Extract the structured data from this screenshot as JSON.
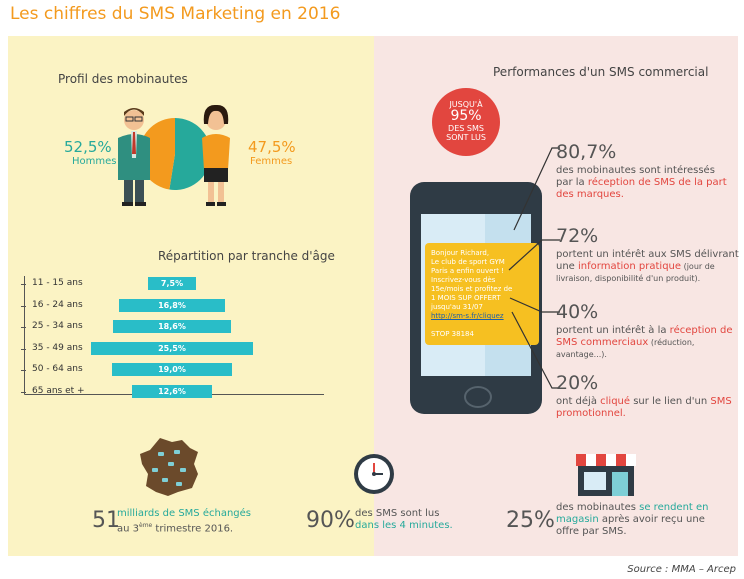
{
  "title": "Les chiffres du SMS Marketing en 2016",
  "profil": {
    "heading": "Profil des mobinautes",
    "hommes_pct": "52,5%",
    "hommes_label": "Hommes",
    "femmes_pct": "47,5%",
    "femmes_label": "Femmes"
  },
  "age": {
    "heading": "Répartition par tranche d'âge"
  },
  "chart_data": [
    {
      "type": "pie",
      "categories": [
        "Hommes",
        "Femmes"
      ],
      "values": [
        52.5,
        47.5
      ],
      "colors": [
        "#26a99b",
        "#f39a1e"
      ]
    },
    {
      "type": "bar",
      "orientation": "horizontal",
      "title": "Répartition par tranche d'âge",
      "categories": [
        "11 - 15 ans",
        "16 - 24 ans",
        "25 - 34 ans",
        "35 - 49 ans",
        "50 - 64 ans",
        "65 ans et +"
      ],
      "values": [
        7.5,
        16.8,
        18.6,
        25.5,
        19.0,
        12.6
      ],
      "labels": [
        "7,5%",
        "16,8%",
        "18,6%",
        "25,5%",
        "19,0%",
        "12,6%"
      ],
      "color": "#29bdc8"
    }
  ],
  "perf": {
    "heading": "Performances d'un SMS commercial",
    "circle": [
      "JUSQU'À",
      "95%",
      "DES SMS",
      "SONT LUS"
    ],
    "sms_lines": [
      "Bonjour Richard,",
      "Le club de sport GYM",
      "Paris a enfin ouvert !",
      "Inscrivez-vous dès",
      "15e/mois et profitez de",
      "1 MOIS SUP OFFERT",
      "jusqu'au 31/07",
      "http://sm-s.fr/cliquez",
      "",
      "STOP 38184"
    ],
    "stat1_num": "80,7%",
    "stat1_a": "des mobinautes sont intéressés",
    "stat1_b": "par la ",
    "stat1_c": "réception de SMS de la part",
    "stat1_d": "des marques.",
    "stat2_num": "72%",
    "stat2_a": "portent un intérêt aux SMS délivrant",
    "stat2_b": "une ",
    "stat2_c": "information pratique",
    "stat2_d": " (jour de",
    "stat2_e": "livraison, disponibilité d'un produit).",
    "stat3_num": "40%",
    "stat3_a": "portent un intérêt à la ",
    "stat3_b": "réception de",
    "stat3_c": "SMS commerciaux",
    "stat3_d": " (réduction, avantage...).",
    "stat4_num": "20%",
    "stat4_a": "ont déjà ",
    "stat4_b": "cliqué",
    "stat4_c": " sur le lien d'un ",
    "stat4_d": "SMS",
    "stat4_e": "promotionnel."
  },
  "bottom": {
    "b1_num": "51",
    "b1_a": "milliards de SMS échangés",
    "b1_b": "au 3",
    "b1_sup": "ème",
    "b1_c": " trimestre 2016.",
    "b2_num": "90%",
    "b2_a": "des SMS sont lus",
    "b2_b": "dans les 4 minutes.",
    "b3_num": "25%",
    "b3_a": "des mobinautes ",
    "b3_b": "se rendent en",
    "b3_c": "magasin",
    "b3_d": " après avoir reçu une",
    "b3_e": "offre par SMS."
  },
  "source": "Source : MMA – Arcep"
}
